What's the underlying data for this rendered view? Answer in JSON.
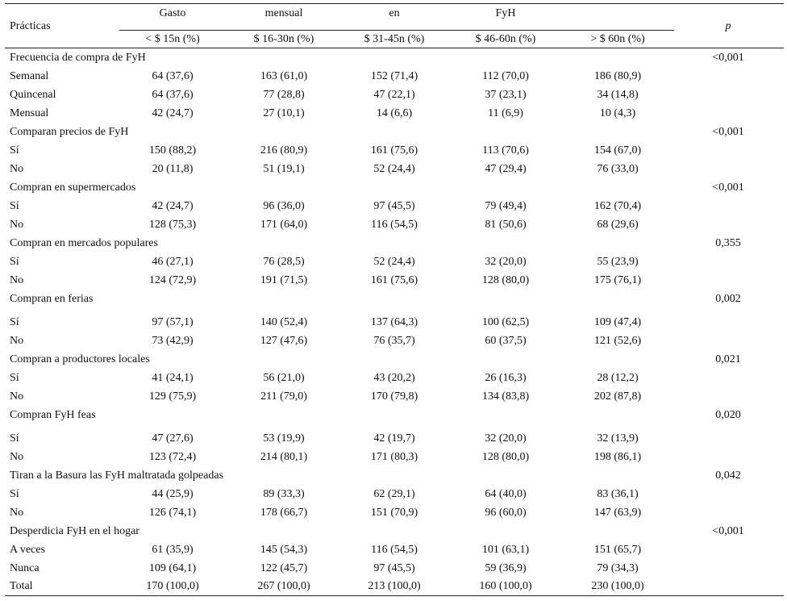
{
  "header": {
    "practicas_label": "Prácticas",
    "span_words": [
      "Gasto",
      "mensual",
      "en",
      "FyH"
    ],
    "p_label": "p",
    "columns": [
      "< $ 15n (%)",
      "$ 16-30n (%)",
      "$ 31-45n (%)",
      "$ 46-60n (%)",
      "> $ 60n (%)"
    ]
  },
  "rows": [
    {
      "label": "Frecuencia de compra de FyH",
      "values": [
        "",
        "",
        "",
        "",
        ""
      ],
      "p": "<0,001"
    },
    {
      "label": "Semanal",
      "values": [
        "64 (37,6)",
        "163 (61,0)",
        "152 (71,4)",
        "112 (70,0)",
        "186 (80,9)"
      ],
      "p": ""
    },
    {
      "label": "Quincenal",
      "values": [
        "64 (37,6)",
        "77 (28,8)",
        "47 (22,1)",
        "37 (23,1)",
        "34 (14,8)"
      ],
      "p": ""
    },
    {
      "label": "Mensual",
      "values": [
        "42 (24,7)",
        "27 (10,1)",
        "14 (6,6)",
        "11 (6,9)",
        "10 (4,3)"
      ],
      "p": ""
    },
    {
      "label": "Comparan precios de FyH",
      "values": [
        "",
        "",
        "",
        "",
        ""
      ],
      "p": "<0,001"
    },
    {
      "label": "Sí",
      "values": [
        "150 (88,2)",
        "216 (80,9)",
        "161 (75,6)",
        "113 (70,6)",
        "154 (67,0)"
      ],
      "p": ""
    },
    {
      "label": "No",
      "values": [
        "20 (11,8)",
        "51 (19,1)",
        "52 (24,4)",
        "47 (29,4)",
        "76 (33,0)"
      ],
      "p": ""
    },
    {
      "label": "Compran en supermercados",
      "values": [
        "",
        "",
        "",
        "",
        ""
      ],
      "p": "<0,001"
    },
    {
      "label": "Sí",
      "values": [
        "42 (24,7)",
        "96 (36,0)",
        "97 (45,5)",
        "79 (49,4)",
        "162 (70,4)"
      ],
      "p": ""
    },
    {
      "label": "No",
      "values": [
        "128 (75,3)",
        "171 (64,0)",
        "116 (54,5)",
        "81 (50,6)",
        "68 (29,6)"
      ],
      "p": ""
    },
    {
      "label": "Compran en mercados populares",
      "values": [
        "",
        "",
        "",
        "",
        ""
      ],
      "p": "0,355"
    },
    {
      "label": "Sí",
      "values": [
        "46 (27,1)",
        "76 (28,5)",
        "52 (24,4)",
        "32 (20,0)",
        "55 (23,9)"
      ],
      "p": ""
    },
    {
      "label": "No",
      "values": [
        "124 (72,9)",
        "191 (71,5)",
        "161 (75,6)",
        "128 (80,0)",
        "175 (76,1)"
      ],
      "p": ""
    },
    {
      "label": "Compran en ferias",
      "values": [
        "",
        "",
        "",
        "",
        ""
      ],
      "p": "0,002"
    },
    {
      "label": "Sí",
      "values": [
        "97 (57,1)",
        "140 (52,4)",
        "137 (64,3)",
        "100 (62,5)",
        "109 (47,4)"
      ],
      "p": ""
    },
    {
      "label": "No",
      "values": [
        "73 (42,9)",
        "127 (47,6)",
        "76 (35,7)",
        "60 (37,5)",
        "121 (52,6)"
      ],
      "p": ""
    },
    {
      "label": "Compran a productores locales",
      "values": [
        "",
        "",
        "",
        "",
        ""
      ],
      "p": "0,021"
    },
    {
      "label": "Sí",
      "values": [
        "41 (24,1)",
        "56 (21,0)",
        "43 (20,2)",
        "26 (16,3)",
        "28 (12,2)"
      ],
      "p": ""
    },
    {
      "label": "No",
      "values": [
        "129 (75,9)",
        "211 (79,0)",
        "170 (79,8)",
        "134 (83,8)",
        "202 (87,8)"
      ],
      "p": ""
    },
    {
      "label": "Compran FyH feas",
      "values": [
        "",
        "",
        "",
        "",
        ""
      ],
      "p": "0,020"
    },
    {
      "label": "Sí",
      "values": [
        "47 (27,6)",
        "53 (19,9)",
        "42 (19,7)",
        "32 (20,0)",
        "32 (13,9)"
      ],
      "p": ""
    },
    {
      "label": "No",
      "values": [
        "123 (72,4)",
        "214 (80,1)",
        "171 (80,3)",
        "128 (80,0)",
        "198 (86,1)"
      ],
      "p": ""
    },
    {
      "label": "Tiran a la Basura las FyH maltratada golpeadas",
      "values": [
        "",
        "",
        "",
        "",
        ""
      ],
      "p": "0,042"
    },
    {
      "label": "Sí",
      "values": [
        "44 (25,9)",
        "89 (33,3)",
        "62 (29,1)",
        "64 (40,0)",
        "83 (36,1)"
      ],
      "p": ""
    },
    {
      "label": "No",
      "values": [
        "126 (74,1)",
        "178 (66,7)",
        "151 (70,9)",
        "96 (60,0)",
        "147 (63,9)"
      ],
      "p": ""
    },
    {
      "label": "Desperdicia FyH en el hogar",
      "values": [
        "",
        "",
        "",
        "",
        ""
      ],
      "p": "<0,001"
    },
    {
      "label": "A veces",
      "values": [
        "61 (35,9)",
        "145 (54,3)",
        "116 (54,5)",
        "101 (63,1)",
        "151 (65,7)"
      ],
      "p": ""
    },
    {
      "label": "Nunca",
      "values": [
        "109 (64,1)",
        "122 (45,7)",
        "97 (45,5)",
        "59 (36,9)",
        "79 (34,3)"
      ],
      "p": ""
    },
    {
      "label": "Total",
      "values": [
        "170 (100,0)",
        "267 (100,0)",
        "213 (100,0)",
        "160 (100,0)",
        "230 (100,0)"
      ],
      "p": ""
    }
  ]
}
